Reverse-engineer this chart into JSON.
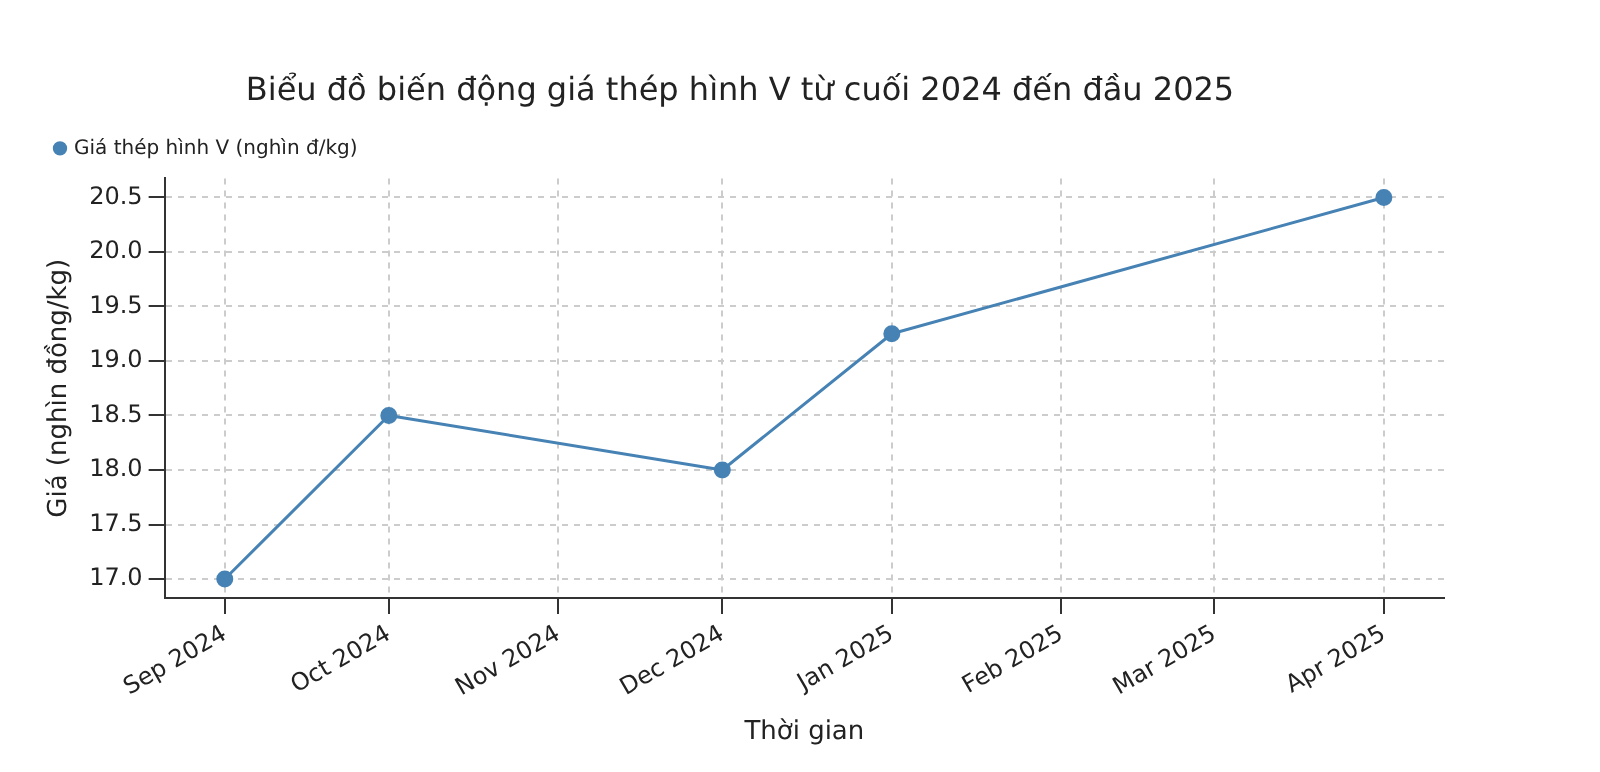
{
  "chart_data": {
    "type": "line",
    "title": "Biểu đồ biến động giá thép hình V từ cuối 2024 đến đầu 2025",
    "xlabel": "Thời gian",
    "ylabel": "Giá (nghìn đồng/kg)",
    "x": [
      "2024-09-01",
      "2024-10-01",
      "2024-12-01",
      "2025-01-01",
      "2025-04-01"
    ],
    "series": [
      {
        "name": "Giá thép hình V (nghìn đ/kg)",
        "color": "#4682b4",
        "values": [
          17.0,
          18.5,
          18.0,
          19.25,
          20.5
        ]
      }
    ],
    "xlim": [
      "2024-08-21",
      "2025-04-12"
    ],
    "xticks": [
      {
        "value": "2024-09-01",
        "label": "Sep 2024"
      },
      {
        "value": "2024-10-01",
        "label": "Oct 2024"
      },
      {
        "value": "2024-11-01",
        "label": "Nov 2024"
      },
      {
        "value": "2024-12-01",
        "label": "Dec 2024"
      },
      {
        "value": "2025-01-01",
        "label": "Jan 2025"
      },
      {
        "value": "2025-02-01",
        "label": "Feb 2025"
      },
      {
        "value": "2025-03-01",
        "label": "Mar 2025"
      },
      {
        "value": "2025-04-01",
        "label": "Apr 2025"
      }
    ],
    "ylim": [
      16.825,
      20.675
    ],
    "yticks": [
      {
        "value": 17,
        "label": "17.0"
      },
      17.5,
      {
        "value": 18,
        "label": "18.0"
      },
      18.5,
      {
        "value": 19,
        "label": "19.0"
      },
      19.5,
      {
        "value": 20,
        "label": "20.0"
      },
      20.5
    ],
    "grid": true,
    "legend": "top left",
    "marker": "circle",
    "line_style": "solid"
  }
}
